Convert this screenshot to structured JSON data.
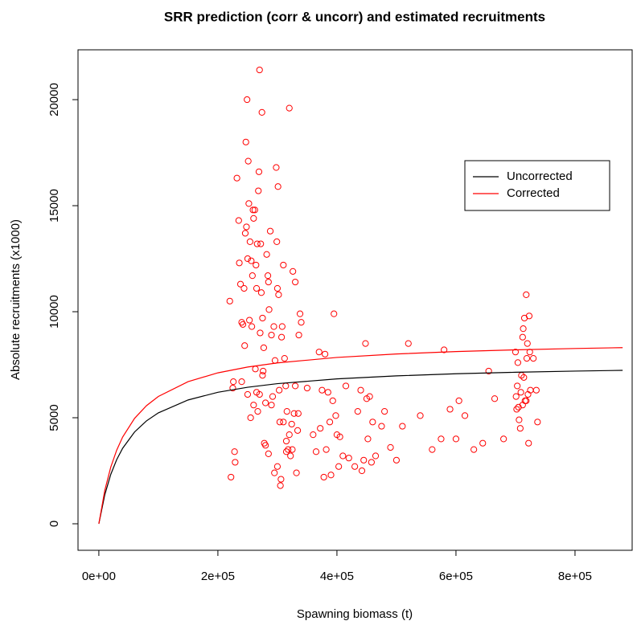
{
  "chart_data": {
    "type": "scatter",
    "title": "SRR prediction (corr & uncorr) and estimated recruitments",
    "x_label": "Spawning biomass (t)",
    "y_label": "Absolute recruitments (x1000)",
    "xlim": [
      -35000,
      896000
    ],
    "ylim": [
      -1250,
      22350
    ],
    "xticks": [
      {
        "value": 0,
        "label": "0e+00"
      },
      {
        "value": 200000,
        "label": "2e+05"
      },
      {
        "value": 400000,
        "label": "4e+05"
      },
      {
        "value": 600000,
        "label": "6e+05"
      },
      {
        "value": 800000,
        "label": "8e+05"
      }
    ],
    "yticks": [
      0,
      5000,
      10000,
      15000,
      20000
    ],
    "legend_position": "top-right",
    "series": [
      {
        "name": "Uncorrected",
        "color": "#000000",
        "x": [
          0,
          10000,
          20000,
          30000,
          40000,
          60000,
          80000,
          100000,
          150000,
          200000,
          250000,
          300000,
          400000,
          500000,
          600000,
          700000,
          800000,
          880000
        ],
        "values": [
          0,
          1372,
          2325,
          3025,
          3562,
          4329,
          4852,
          5231,
          5839,
          6200,
          6438,
          6608,
          6833,
          6975,
          7073,
          7145,
          7200,
          7235
        ]
      },
      {
        "name": "Corrected",
        "color": "#ff0000",
        "x": [
          0,
          10000,
          20000,
          30000,
          40000,
          60000,
          80000,
          100000,
          150000,
          200000,
          250000,
          300000,
          400000,
          500000,
          600000,
          700000,
          800000,
          880000
        ],
        "values": [
          0,
          1575,
          2669,
          3473,
          4089,
          4970,
          5570,
          6005,
          6703,
          7118,
          7391,
          7586,
          7844,
          8007,
          8120,
          8202,
          8266,
          8306
        ]
      }
    ],
    "points": {
      "color": "#ff0000",
      "x": [
        220000,
        222000,
        228000,
        229000,
        226000,
        232000,
        235000,
        236000,
        238000,
        240000,
        242000,
        244000,
        246000,
        247000,
        248000,
        249000,
        250000,
        251000,
        252000,
        253000,
        254000,
        256000,
        257000,
        258000,
        259000,
        260000,
        262000,
        263000,
        264000,
        265000,
        266000,
        267000,
        268000,
        269000,
        270000,
        271000,
        272000,
        273000,
        274000,
        275000,
        276000,
        277000,
        278000,
        280000,
        282000,
        284000,
        285000,
        286000,
        288000,
        290000,
        292000,
        294000,
        296000,
        298000,
        299000,
        300000,
        301000,
        302000,
        303000,
        304000,
        305000,
        306000,
        307000,
        308000,
        310000,
        312000,
        314000,
        315000,
        316000,
        318000,
        320000,
        322000,
        324000,
        326000,
        328000,
        330000,
        332000,
        334000,
        336000,
        338000,
        340000,
        225000,
        240000,
        245000,
        250000,
        255000,
        260000,
        265000,
        270000,
        275000,
        280000,
        285000,
        290000,
        295000,
        300000,
        310000,
        315000,
        320000,
        325000,
        330000,
        335000,
        350000,
        360000,
        365000,
        370000,
        372000,
        375000,
        378000,
        380000,
        382000,
        385000,
        388000,
        390000,
        393000,
        395000,
        398000,
        400000,
        403000,
        405000,
        410000,
        415000,
        420000,
        430000,
        435000,
        440000,
        442000,
        445000,
        448000,
        450000,
        452000,
        455000,
        458000,
        460000,
        465000,
        475000,
        480000,
        490000,
        500000,
        510000,
        520000,
        540000,
        560000,
        575000,
        580000,
        590000,
        600000,
        605000,
        615000,
        630000,
        645000,
        655000,
        665000,
        680000,
        700000,
        701000,
        702000,
        703000,
        704000,
        706000,
        708000,
        709000,
        710000,
        712000,
        713000,
        714000,
        715000,
        716000,
        718000,
        719000,
        720000,
        721000,
        722000,
        723000,
        724000,
        725000,
        730000,
        735000,
        737000,
        712000,
        718000,
        705000
      ],
      "values": [
        10500,
        2200,
        3400,
        2900,
        6700,
        16300,
        14300,
        12300,
        11300,
        9500,
        9400,
        11100,
        13700,
        18000,
        14000,
        20000,
        12500,
        17100,
        15100,
        9600,
        13300,
        12400,
        9300,
        11700,
        14800,
        14400,
        14800,
        7300,
        12200,
        11100,
        13200,
        5300,
        15700,
        16600,
        21400,
        9000,
        13200,
        10900,
        19400,
        9700,
        7200,
        8300,
        3800,
        3700,
        12700,
        11700,
        11400,
        10100,
        13800,
        8900,
        6000,
        9300,
        7700,
        16800,
        13300,
        11100,
        15900,
        10800,
        6300,
        4800,
        1800,
        2100,
        8800,
        9300,
        12200,
        7800,
        6500,
        3900,
        5300,
        3500,
        19600,
        3200,
        4700,
        11900,
        5200,
        11400,
        2400,
        4400,
        8900,
        9900,
        9500,
        6400,
        6700,
        8400,
        6100,
        5000,
        5600,
        6200,
        6100,
        7000,
        5700,
        3300,
        5600,
        2400,
        2700,
        4800,
        3400,
        4200,
        3500,
        6500,
        5200,
        6400,
        4200,
        3400,
        8100,
        4500,
        6300,
        2200,
        8000,
        3500,
        6200,
        4800,
        2300,
        5800,
        9900,
        5100,
        4200,
        2700,
        4100,
        3200,
        6500,
        3100,
        2700,
        5300,
        6300,
        2500,
        3000,
        8500,
        5900,
        4000,
        6000,
        2900,
        4800,
        3200,
        4600,
        5300,
        3600,
        3000,
        4600,
        8500,
        5100,
        3500,
        4000,
        8200,
        5400,
        4000,
        5800,
        5100,
        3500,
        3800,
        7200,
        5900,
        4000,
        8100,
        6000,
        5400,
        6500,
        7600,
        4900,
        4500,
        6200,
        7000,
        8800,
        9200,
        6900,
        9700,
        5800,
        10800,
        7800,
        8500,
        6100,
        3800,
        9800,
        8100,
        6300,
        7800,
        6300,
        4800,
        5600,
        5800,
        5500
      ]
    }
  }
}
